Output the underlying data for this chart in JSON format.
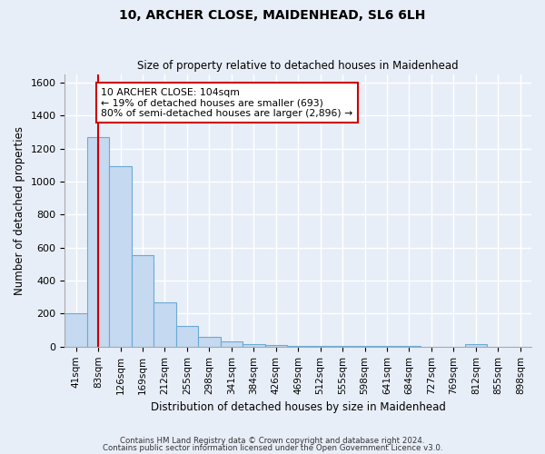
{
  "title1": "10, ARCHER CLOSE, MAIDENHEAD, SL6 6LH",
  "title2": "Size of property relative to detached houses in Maidenhead",
  "xlabel": "Distribution of detached houses by size in Maidenhead",
  "ylabel": "Number of detached properties",
  "bar_labels": [
    "41sqm",
    "83sqm",
    "126sqm",
    "169sqm",
    "212sqm",
    "255sqm",
    "298sqm",
    "341sqm",
    "384sqm",
    "426sqm",
    "469sqm",
    "512sqm",
    "555sqm",
    "598sqm",
    "641sqm",
    "684sqm",
    "727sqm",
    "769sqm",
    "812sqm",
    "855sqm",
    "898sqm"
  ],
  "bar_values": [
    200,
    1270,
    1095,
    555,
    270,
    125,
    60,
    30,
    18,
    10,
    5,
    5,
    3,
    3,
    2,
    2,
    0,
    0,
    15,
    0,
    0
  ],
  "bar_color": "#c5d9f0",
  "bar_edge_color": "#6aaad4",
  "red_line_color": "#cc0000",
  "annotation_text": "10 ARCHER CLOSE: 104sqm\n← 19% of detached houses are smaller (693)\n80% of semi-detached houses are larger (2,896) →",
  "annotation_box_color": "#ffffff",
  "annotation_box_edge": "#cc0000",
  "ylim": [
    0,
    1650
  ],
  "yticks": [
    0,
    200,
    400,
    600,
    800,
    1000,
    1200,
    1400,
    1600
  ],
  "bg_color": "#e8eef8",
  "fig_color": "#e8eef8",
  "grid_color": "#ffffff",
  "footer1": "Contains HM Land Registry data © Crown copyright and database right 2024.",
  "footer2": "Contains public sector information licensed under the Open Government Licence v3.0."
}
